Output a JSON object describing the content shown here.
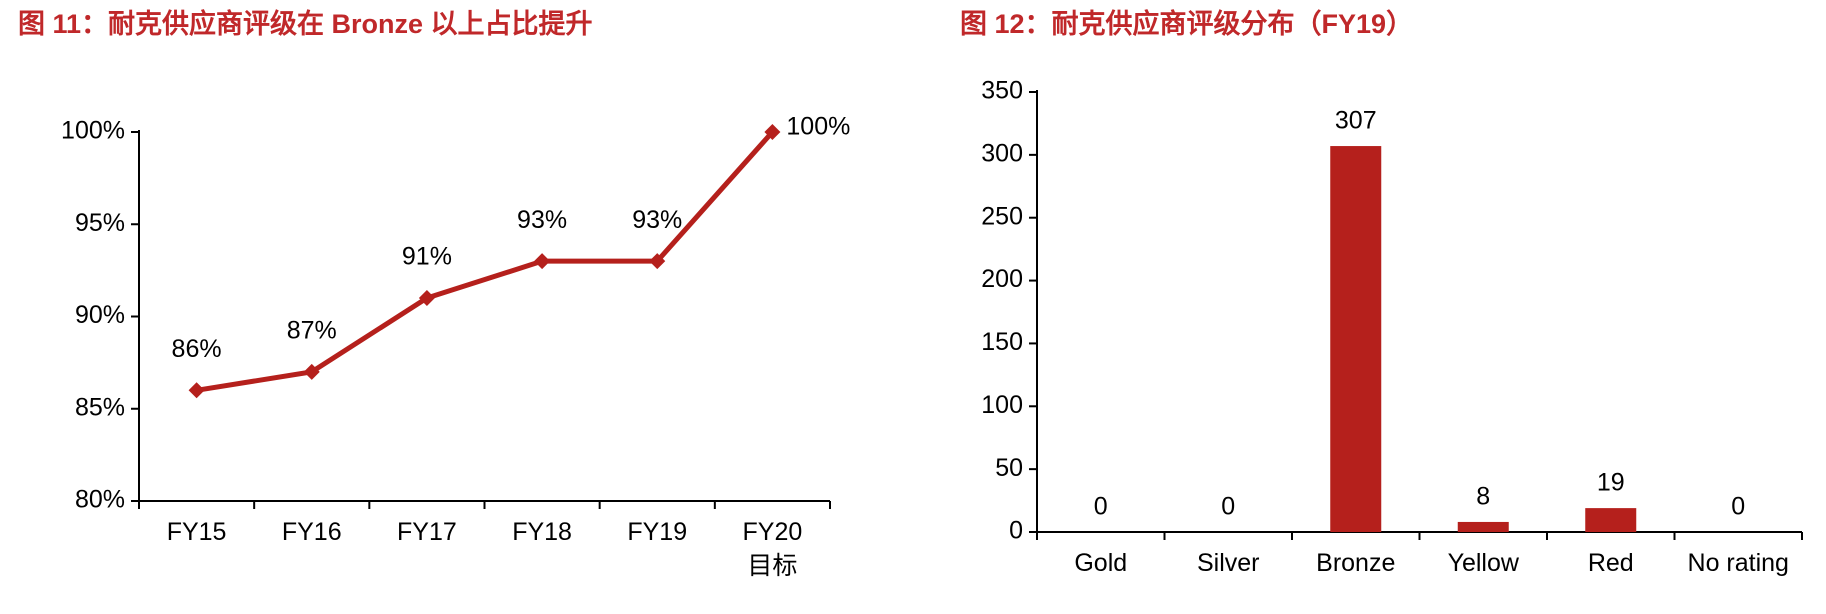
{
  "chart_data": [
    {
      "type": "line",
      "title": "图 11：耐克供应商评级在 Bronze 以上占比提升",
      "categories": [
        "FY15",
        "FY16",
        "FY17",
        "FY18",
        "FY19",
        "FY20\n目标"
      ],
      "values": [
        86,
        87,
        91,
        93,
        93,
        100
      ],
      "value_labels": [
        "86%",
        "87%",
        "91%",
        "93%",
        "93%",
        "100%"
      ],
      "color": "#b5201c",
      "ylim": [
        80,
        100
      ],
      "yticks": [
        {
          "value": 80,
          "label": "80%"
        },
        {
          "value": 85,
          "label": "85%"
        },
        {
          "value": 90,
          "label": "90%"
        },
        {
          "value": 95,
          "label": "95%"
        },
        {
          "value": 100,
          "label": "100%"
        }
      ]
    },
    {
      "type": "bar",
      "title": "图 12：耐克供应商评级分布（FY19）",
      "categories": [
        "Gold",
        "Silver",
        "Bronze",
        "Yellow",
        "Red",
        "No rating"
      ],
      "values": [
        0,
        0,
        307,
        8,
        19,
        0
      ],
      "color": "#b5201c",
      "ylim": [
        0,
        350
      ],
      "yticks": [
        0,
        50,
        100,
        150,
        200,
        250,
        300,
        350
      ]
    }
  ]
}
